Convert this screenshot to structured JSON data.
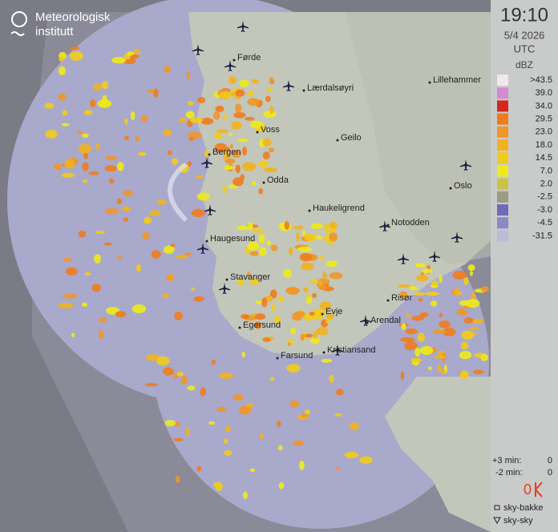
{
  "logo": {
    "line1": "Meteorologisk",
    "line2": "institutt"
  },
  "time": "19:10",
  "date": "5/4 2026",
  "timezone": "UTC",
  "legend": {
    "unit": "dBZ",
    "items": [
      {
        "label": ">43.5",
        "color": "#f4e6ec"
      },
      {
        "label": "39.0",
        "color": "#d68ad0"
      },
      {
        "label": "34.0",
        "color": "#d2281c"
      },
      {
        "label": "29.5",
        "color": "#ef7c1e"
      },
      {
        "label": "23.0",
        "color": "#f0962a"
      },
      {
        "label": "18.0",
        "color": "#f2b21e"
      },
      {
        "label": "14.5",
        "color": "#f0cc1c"
      },
      {
        "label": "7.0",
        "color": "#eeea1a"
      },
      {
        "label": "2.0",
        "color": "#c8c448"
      },
      {
        "label": "-2.5",
        "color": "#9a9c84"
      },
      {
        "label": "-3.0",
        "color": "#6c6cb8"
      },
      {
        "label": "-4.5",
        "color": "#8a8ac8"
      },
      {
        "label": "-31.5",
        "color": "#bcbcd8"
      }
    ]
  },
  "lightning": {
    "plus_label": "+3 min:",
    "plus_count": 0,
    "minus_label": "-2 min:",
    "minus_count": 0,
    "total": 0,
    "ground": "sky-bakke",
    "cloud": "sky-sky"
  },
  "cities": [
    "Førde",
    "Lærdalsøyri",
    "Lillehammer",
    "Voss",
    "Geilo",
    "Bergen",
    "Odda",
    "Oslo",
    "Haukeligrend",
    "Notodden",
    "Haugesund",
    "Stavanger",
    "Risør",
    "Arendal",
    "Evje",
    "Egersund",
    "Kristiansand",
    "Farsund"
  ]
}
